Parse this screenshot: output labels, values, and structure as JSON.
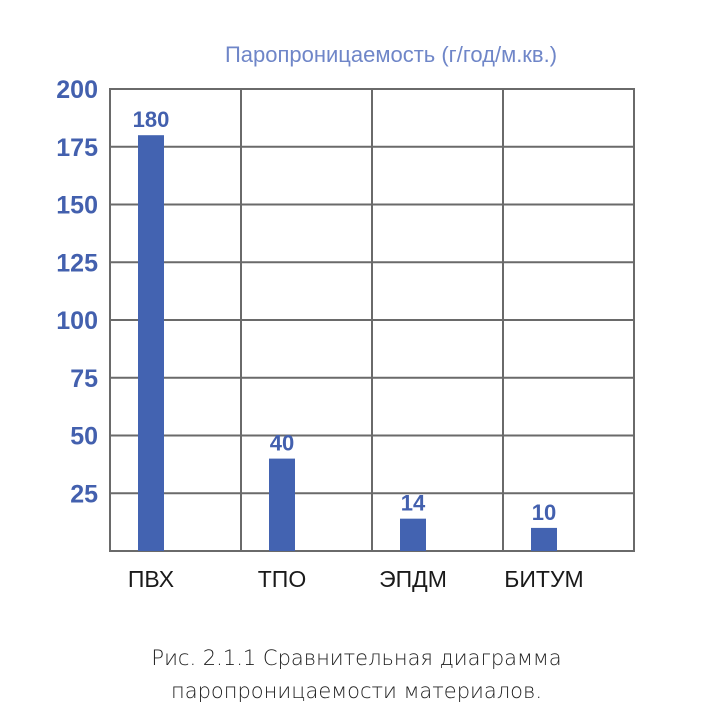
{
  "chart_data": {
    "type": "bar",
    "title": "Паропроницаемость (г/год/м.кв.)",
    "categories": [
      "ПВХ",
      "ТПО",
      "ЭПДМ",
      "БИТУМ"
    ],
    "values": [
      180,
      40,
      14,
      10
    ],
    "value_labels": [
      "180",
      "40",
      "14",
      "10"
    ],
    "ylim": [
      0,
      200
    ],
    "yticks": [
      25,
      50,
      75,
      100,
      125,
      150,
      175,
      200
    ],
    "ytick_labels": [
      "25",
      "50",
      "75",
      "100",
      "125",
      "150",
      "175",
      "200"
    ],
    "grid": true,
    "bar_color": "#4363b1",
    "label_color": "#4360ae",
    "xlabel": "",
    "ylabel": ""
  },
  "caption": {
    "line1": "Рис. 2.1.1 Сравнительная диаграмма",
    "line2": "паропроницаемости материалов."
  }
}
